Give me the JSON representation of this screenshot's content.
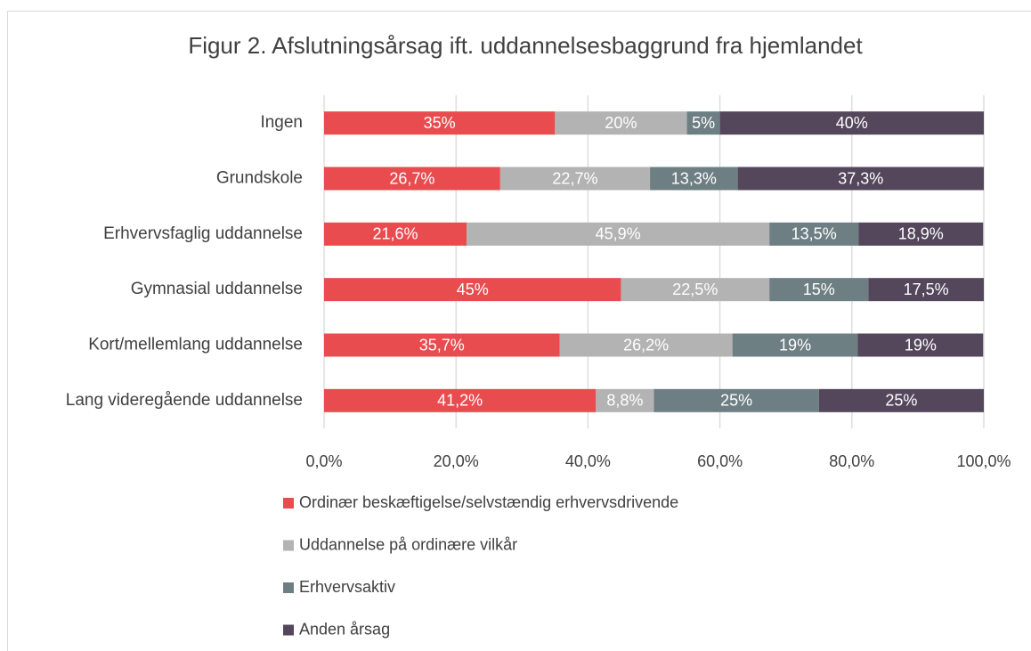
{
  "chart_data": {
    "type": "stacked_bar_horizontal",
    "title": "Figur 2. Afslutningsårsag ift. uddannelsesbaggrund fra hjemlandet",
    "categories": [
      "Ingen",
      "Grundskole",
      "Erhvervsfaglig uddannelse",
      "Gymnasial uddannelse",
      "Kort/mellemlang uddannelse",
      "Lang videregående uddannelse"
    ],
    "series": [
      {
        "name": "Ordinær beskæftigelse/selvstændig erhvervsdrivende",
        "color": "#e84c4f",
        "values": [
          35,
          26.7,
          21.6,
          45,
          35.7,
          41.2
        ],
        "value_labels": [
          "35%",
          "26,7%",
          "21,6%",
          "45%",
          "35,7%",
          "41,2%"
        ]
      },
      {
        "name": "Uddannelse på ordinære vilkår",
        "color": "#b3b3b3",
        "values": [
          20,
          22.7,
          45.9,
          22.5,
          26.2,
          8.8
        ],
        "value_labels": [
          "20%",
          "22,7%",
          "45,9%",
          "22,5%",
          "26,2%",
          "8,8%"
        ]
      },
      {
        "name": "Erhvervsaktiv",
        "color": "#6e7f83",
        "values": [
          5,
          13.3,
          13.5,
          15,
          19,
          25
        ],
        "value_labels": [
          "5%",
          "13,3%",
          "13,5%",
          "15%",
          "19%",
          "25%"
        ]
      },
      {
        "name": "Anden årsag",
        "color": "#54475c",
        "values": [
          40,
          37.3,
          18.9,
          17.5,
          19,
          25
        ],
        "value_labels": [
          "40%",
          "37,3%",
          "18,9%",
          "17,5%",
          "19%",
          "25%"
        ]
      }
    ],
    "xlim": [
      0,
      100
    ],
    "xticks": [
      {
        "value": 0,
        "label": "0,0%"
      },
      {
        "value": 20,
        "label": "20,0%"
      },
      {
        "value": 40,
        "label": "40,0%"
      },
      {
        "value": 60,
        "label": "60,0%"
      },
      {
        "value": 80,
        "label": "80,0%"
      },
      {
        "value": 100,
        "label": "100,0%"
      }
    ],
    "grid": true,
    "legend": "bottom"
  }
}
